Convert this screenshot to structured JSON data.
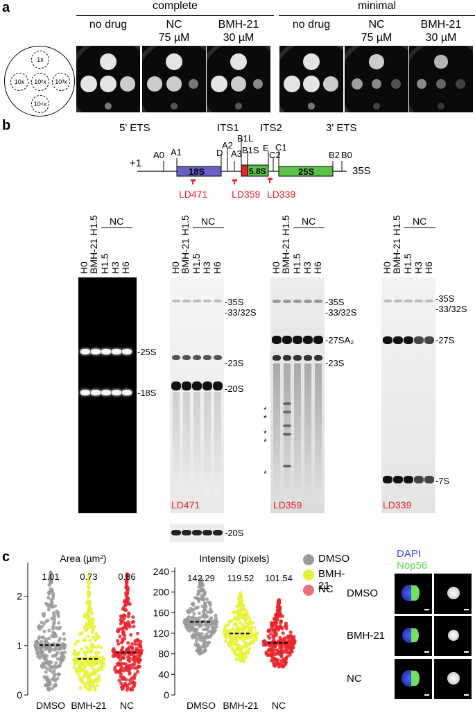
{
  "panel_a": {
    "letter": "a",
    "group_complete": "complete",
    "group_minimal": "minimal",
    "plate_labels": [
      {
        "line1": "no drug",
        "line2": ""
      },
      {
        "line1": "NC",
        "line2": "75 µM"
      },
      {
        "line1": "BMH-21",
        "line2": "30 µM"
      },
      {
        "line1": "no drug",
        "line2": ""
      },
      {
        "line1": "NC",
        "line2": "75 µM"
      },
      {
        "line1": "BMH-21",
        "line2": "30 µM"
      }
    ],
    "dilution_labels": [
      "1x",
      "10x",
      "10²x",
      "10³x",
      "10⁴x"
    ]
  },
  "panel_b": {
    "letter": "b",
    "regions": {
      "ets5": "5' ETS",
      "its1": "ITS1",
      "its2": "ITS2",
      "ets3": "3' ETS"
    },
    "plus_one": "+1",
    "segment_18s": "18S",
    "segment_58s": "5.8S",
    "segment_25s": "25S",
    "transcript": "35S",
    "sites": {
      "A0": "A0",
      "A1": "A1",
      "D": "D",
      "A2": "A2",
      "A3": "A3",
      "B1L": "B1L",
      "B1S": "B1S",
      "E": "E",
      "C2": "C2",
      "C1": "C1",
      "B2": "B2",
      "B0": "B0"
    },
    "probes": [
      "LD471",
      "LD359",
      "LD339"
    ],
    "lane_header_bmh": "BMH-21 H1.5",
    "lane_header_nc": "NC",
    "lanes": [
      "H0",
      "BMH-21 H1.5",
      "H1.5",
      "H3",
      "H6"
    ],
    "blot1_marks": [
      "-25S",
      "-18S"
    ],
    "blot2_marks": [
      "-35S",
      "-33/32S",
      "-23S",
      "-20S"
    ],
    "blot2_bottom_mark": "-20S",
    "blot3_marks": [
      "-35S",
      "-33/32S",
      "-27SA₂",
      "-23S"
    ],
    "blot3_stars": [
      "*",
      "*",
      "*",
      "*",
      "*"
    ],
    "blot4_marks": [
      "-35S",
      "-33/32S",
      "-27S",
      "-7S"
    ],
    "probe_labels": [
      "LD471",
      "LD359",
      "LD339"
    ]
  },
  "panel_c": {
    "letter": "c",
    "area_title": "Area (µm²)",
    "intensity_title": "Intensity (pixels)",
    "legend": [
      "DMSO",
      "BMH-21",
      "NC"
    ],
    "colors": {
      "DMSO": "#9a9a9a",
      "BMH-21": "#e6f23a",
      "NC": "#e8232a"
    },
    "micro_channels": {
      "dapi": "DAPI",
      "nop": "Nop56"
    },
    "micro_rows": [
      "DMSO",
      "BMH-21",
      "NC"
    ]
  },
  "chart_data": [
    {
      "type": "scatter",
      "title": "Area (µm²)",
      "categories": [
        "DMSO",
        "BMH-21",
        "NC"
      ],
      "values": [
        1.01,
        0.73,
        0.86
      ],
      "value_labels": [
        "1.01",
        "0.73",
        "0.86"
      ],
      "yticks": [
        "0",
        "1",
        "2"
      ],
      "ylim": [
        0,
        2.6
      ],
      "series": [
        {
          "name": "DMSO",
          "mean": 1.01,
          "min": 0.1,
          "max": 2.5
        },
        {
          "name": "BMH-21",
          "mean": 0.73,
          "min": 0.1,
          "max": 2.45
        },
        {
          "name": "NC",
          "mean": 0.86,
          "min": 0.1,
          "max": 2.45
        }
      ]
    },
    {
      "type": "scatter",
      "title": "Intensity (pixels)",
      "categories": [
        "DMSO",
        "BMH-21",
        "NC"
      ],
      "values": [
        142.29,
        119.52,
        101.54
      ],
      "value_labels": [
        "142.29",
        "119.52",
        "101.54"
      ],
      "yticks": [
        "0",
        "40",
        "80",
        "120",
        "160",
        "200",
        "240"
      ],
      "ylim": [
        0,
        240
      ],
      "series": [
        {
          "name": "DMSO",
          "mean": 142.29,
          "min": 80,
          "max": 225
        },
        {
          "name": "BMH-21",
          "mean": 119.52,
          "min": 65,
          "max": 200
        },
        {
          "name": "NC",
          "mean": 101.54,
          "min": 55,
          "max": 185
        }
      ]
    }
  ]
}
